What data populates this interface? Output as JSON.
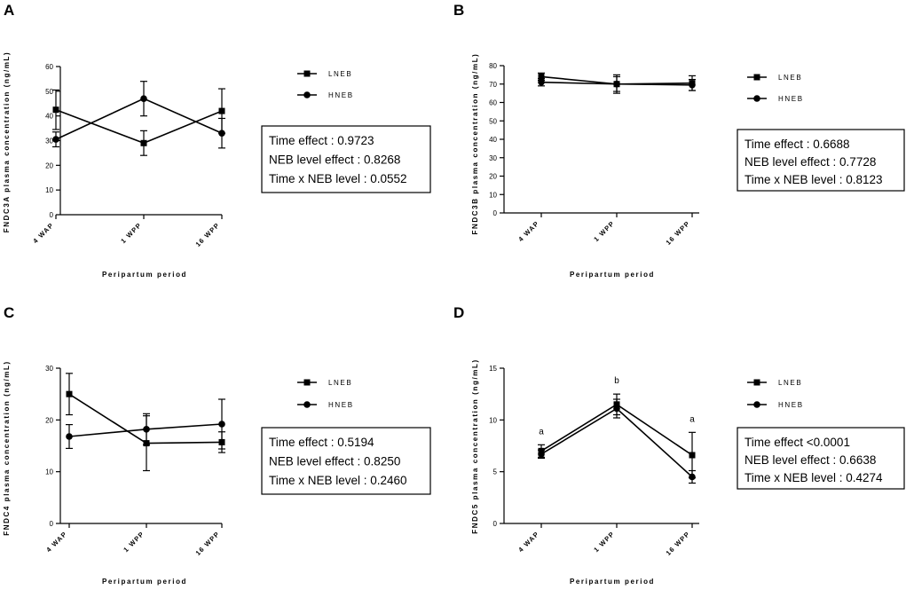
{
  "chart_data": [
    {
      "panel": "A",
      "type": "line",
      "categories": [
        "4 WAP",
        "1 WPP",
        "16 WPP"
      ],
      "ylabel": "FNDC3A plasma concentration (ng/mL)",
      "xlabel": "Peripartum period",
      "ylim": [
        0,
        60
      ],
      "yticks": [
        0,
        10,
        20,
        30,
        40,
        50,
        60
      ],
      "series": [
        {
          "name": "LNEB",
          "marker": "square",
          "values": [
            42.5,
            29,
            42
          ],
          "err": [
            8,
            5,
            9
          ]
        },
        {
          "name": "HNEB",
          "marker": "circle",
          "values": [
            30.5,
            47,
            33
          ],
          "err": [
            3,
            7,
            6
          ]
        }
      ],
      "significance": [],
      "stats": [
        "Time effect : 0.9723",
        "NEB level effect : 0.8268",
        "Time x NEB level : 0.0552"
      ]
    },
    {
      "panel": "B",
      "type": "line",
      "categories": [
        "4 WAP",
        "1 WPP",
        "16 WPP"
      ],
      "ylabel": "FNDC3B plasma concentration (ng/mL)",
      "xlabel": "Peripartum period",
      "ylim": [
        0,
        80
      ],
      "yticks": [
        0,
        10,
        20,
        30,
        40,
        50,
        60,
        70,
        80
      ],
      "series": [
        {
          "name": "LNEB",
          "marker": "square",
          "values": [
            74,
            70,
            70.5
          ],
          "err": [
            2,
            5,
            4
          ]
        },
        {
          "name": "HNEB",
          "marker": "circle",
          "values": [
            71,
            70,
            69.5
          ],
          "err": [
            2,
            4,
            3
          ]
        }
      ],
      "significance": [],
      "stats": [
        "Time effect : 0.6688",
        "NEB level effect : 0.7728",
        "Time x NEB level : 0.8123"
      ]
    },
    {
      "panel": "C",
      "type": "line",
      "categories": [
        "4 WAP",
        "1 WPP",
        "16 WPP"
      ],
      "ylabel": "FNDC4 plasma concentration (ng/mL)",
      "xlabel": "Peripartum period",
      "ylim": [
        0,
        30
      ],
      "yticks": [
        0,
        10,
        20,
        30
      ],
      "series": [
        {
          "name": "LNEB",
          "marker": "square",
          "values": [
            25,
            15.5,
            15.7
          ],
          "err": [
            4,
            5.3,
            2
          ]
        },
        {
          "name": "HNEB",
          "marker": "circle",
          "values": [
            16.8,
            18.2,
            19.2
          ],
          "err": [
            2.3,
            3,
            4.8
          ]
        }
      ],
      "significance": [],
      "stats": [
        "Time effect : 0.5194",
        "NEB level effect : 0.8250",
        "Time x NEB level : 0.2460"
      ]
    },
    {
      "panel": "D",
      "type": "line",
      "categories": [
        "4 WAP",
        "1 WPP",
        "16 WPP"
      ],
      "ylabel": "FNDC5 plasma concentration (ng/mL)",
      "xlabel": "Peripartum period",
      "ylim": [
        0,
        15
      ],
      "yticks": [
        0,
        5,
        10,
        15
      ],
      "series": [
        {
          "name": "LNEB",
          "marker": "square",
          "values": [
            7,
            11.5,
            6.6
          ],
          "err": [
            0.6,
            1,
            2.2
          ]
        },
        {
          "name": "HNEB",
          "marker": "circle",
          "values": [
            6.7,
            11.1,
            4.5
          ],
          "err": [
            0.4,
            0.9,
            0.6
          ]
        }
      ],
      "significance": [
        "a",
        "b",
        "a"
      ],
      "stats": [
        "Time effect <0.0001",
        "NEB level effect : 0.6638",
        "Time x NEB level : 0.4274"
      ]
    }
  ]
}
